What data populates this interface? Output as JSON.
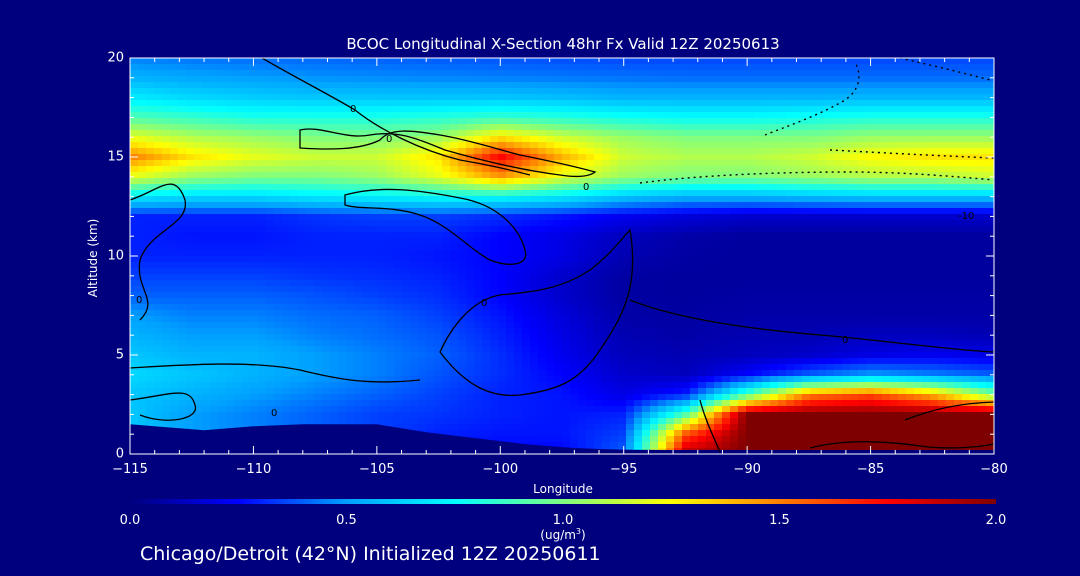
{
  "chart_data": {
    "type": "heatmap",
    "title": "BCOC Longitudinal X-Section 48hr  Fx Valid 12Z 20250613",
    "xlabel": "Longitude",
    "ylabel": "Altitude (km)",
    "xlim": [
      -115,
      -80
    ],
    "ylim": [
      0,
      20
    ],
    "xticks": [
      "-115",
      "-110",
      "-105",
      "-100",
      "-95",
      "-90",
      "-85",
      "-80"
    ],
    "yticks": [
      "0",
      "5",
      "10",
      "15",
      "20"
    ],
    "colorbar": {
      "range": [
        0.0,
        2.0
      ],
      "ticks": [
        "0.0",
        "0.5",
        "1.0",
        "1.5",
        "2.0"
      ],
      "unit_base": "(ug/m",
      "unit_sup": "3",
      "unit_end": ")",
      "colormap": [
        "#00007f",
        "#0000ff",
        "#00a0ff",
        "#00ffff",
        "#80ff80",
        "#ffff00",
        "#ff8000",
        "#ff0000",
        "#7f0000"
      ]
    },
    "field": {
      "x": [
        -115,
        -112.5,
        -110,
        -107.5,
        -105,
        -102.5,
        -100,
        -97.5,
        -95,
        -92.5,
        -90,
        -87.5,
        -85,
        -82.5,
        -80
      ],
      "z": [
        0,
        1,
        2,
        3,
        4,
        5,
        6,
        7,
        8,
        9,
        10,
        11,
        12,
        13,
        14,
        15,
        16,
        17,
        18,
        19,
        20
      ],
      "values": [
        [
          0.55,
          0.5,
          0.45,
          0.4,
          0.35,
          0.3,
          0.25,
          0.25,
          0.4,
          1.9,
          2.0,
          2.0,
          2.0,
          2.0,
          2.0
        ],
        [
          0.6,
          0.5,
          0.45,
          0.4,
          0.35,
          0.3,
          0.28,
          0.28,
          0.35,
          1.6,
          2.0,
          2.0,
          2.0,
          2.0,
          2.0
        ],
        [
          0.6,
          0.5,
          0.45,
          0.4,
          0.35,
          0.33,
          0.3,
          0.28,
          0.3,
          0.9,
          2.0,
          2.0,
          2.0,
          2.0,
          2.0
        ],
        [
          0.6,
          0.55,
          0.5,
          0.45,
          0.4,
          0.35,
          0.3,
          0.28,
          0.2,
          0.3,
          0.9,
          1.5,
          1.6,
          1.4,
          1.0
        ],
        [
          0.65,
          0.6,
          0.55,
          0.5,
          0.45,
          0.38,
          0.32,
          0.25,
          0.15,
          0.12,
          0.25,
          0.4,
          0.5,
          0.45,
          0.4
        ],
        [
          0.6,
          0.55,
          0.55,
          0.5,
          0.45,
          0.4,
          0.32,
          0.22,
          0.12,
          0.1,
          0.12,
          0.15,
          0.2,
          0.22,
          0.2
        ],
        [
          0.55,
          0.5,
          0.5,
          0.45,
          0.42,
          0.38,
          0.3,
          0.2,
          0.1,
          0.08,
          0.1,
          0.1,
          0.12,
          0.12,
          0.1
        ],
        [
          0.5,
          0.45,
          0.45,
          0.42,
          0.4,
          0.35,
          0.28,
          0.18,
          0.08,
          0.07,
          0.08,
          0.08,
          0.08,
          0.08,
          0.08
        ],
        [
          0.4,
          0.4,
          0.4,
          0.38,
          0.35,
          0.32,
          0.25,
          0.15,
          0.07,
          0.06,
          0.07,
          0.07,
          0.07,
          0.07,
          0.07
        ],
        [
          0.35,
          0.35,
          0.35,
          0.33,
          0.32,
          0.3,
          0.25,
          0.15,
          0.07,
          0.06,
          0.06,
          0.06,
          0.06,
          0.06,
          0.06
        ],
        [
          0.3,
          0.3,
          0.3,
          0.3,
          0.3,
          0.28,
          0.25,
          0.2,
          0.1,
          0.07,
          0.06,
          0.06,
          0.06,
          0.06,
          0.06
        ],
        [
          0.3,
          0.28,
          0.28,
          0.3,
          0.3,
          0.3,
          0.25,
          0.2,
          0.12,
          0.08,
          0.06,
          0.06,
          0.06,
          0.06,
          0.06
        ],
        [
          0.3,
          0.3,
          0.3,
          0.33,
          0.35,
          0.35,
          0.32,
          0.28,
          0.22,
          0.18,
          0.15,
          0.15,
          0.15,
          0.15,
          0.15
        ],
        [
          0.7,
          0.65,
          0.65,
          0.7,
          0.72,
          0.75,
          0.75,
          0.7,
          0.6,
          0.55,
          0.55,
          0.58,
          0.6,
          0.6,
          0.6
        ],
        [
          1.2,
          1.05,
          1.0,
          1.0,
          1.05,
          1.2,
          1.45,
          1.2,
          1.05,
          1.0,
          1.0,
          1.05,
          1.1,
          1.1,
          1.15
        ],
        [
          1.5,
          1.3,
          1.2,
          1.15,
          1.15,
          1.3,
          1.75,
          1.4,
          1.15,
          1.1,
          1.1,
          1.15,
          1.25,
          1.3,
          1.3
        ],
        [
          1.2,
          1.1,
          1.05,
          1.0,
          1.0,
          1.05,
          1.3,
          1.15,
          1.05,
          1.0,
          1.0,
          1.0,
          1.05,
          1.05,
          1.05
        ],
        [
          0.9,
          0.85,
          0.8,
          0.8,
          0.8,
          0.82,
          0.85,
          0.82,
          0.78,
          0.75,
          0.75,
          0.78,
          0.8,
          0.8,
          0.8
        ],
        [
          0.7,
          0.65,
          0.62,
          0.6,
          0.6,
          0.6,
          0.6,
          0.58,
          0.55,
          0.55,
          0.55,
          0.55,
          0.56,
          0.56,
          0.56
        ],
        [
          0.55,
          0.52,
          0.5,
          0.48,
          0.47,
          0.46,
          0.45,
          0.44,
          0.43,
          0.42,
          0.42,
          0.42,
          0.42,
          0.42,
          0.42
        ],
        [
          0.45,
          0.43,
          0.42,
          0.41,
          0.4,
          0.39,
          0.38,
          0.37,
          0.36,
          0.36,
          0.36,
          0.36,
          0.36,
          0.36,
          0.36
        ]
      ]
    },
    "terrain": {
      "x": [
        -115,
        -114,
        -113,
        -112,
        -111,
        -110,
        -108,
        -106,
        -105,
        -104,
        -103,
        -102,
        -101,
        -100,
        -99,
        -98,
        -97,
        -96,
        -95,
        -93,
        -91,
        -89,
        -87,
        -85,
        -83,
        -81,
        -80
      ],
      "z": [
        1.5,
        1.4,
        1.3,
        1.2,
        1.3,
        1.4,
        1.5,
        1.5,
        1.5,
        1.3,
        1.1,
        0.95,
        0.8,
        0.65,
        0.5,
        0.4,
        0.3,
        0.25,
        0.22,
        0.2,
        0.2,
        0.2,
        0.2,
        0.2,
        0.2,
        0.2,
        0.2
      ]
    },
    "contours": {
      "solid_labels": [
        "0",
        "0",
        "0",
        "0",
        "0",
        "0",
        "0"
      ],
      "dashed_label": "-10"
    }
  },
  "footer": {
    "caption": "Chicago/Detroit (42°N) Initialized 12Z 20250611"
  }
}
